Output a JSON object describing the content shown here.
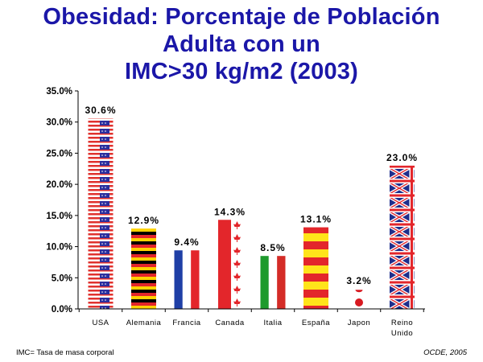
{
  "title_lines": [
    "Obesidad: Porcentaje de Población",
    "Adulta con un",
    "IMC>30 kg/m2 (2003)"
  ],
  "footnote": "IMC= Tasa de masa corporal",
  "source": "OCDE, 2005",
  "colors": {
    "title": "#1b17a8",
    "usa_red": "#e0322e",
    "usa_blue": "#2b2f9e",
    "germany_black": "#000000",
    "germany_red": "#e3262b",
    "germany_gold": "#ffd200",
    "france_blue": "#1f3fa6",
    "france_red": "#e3262b",
    "canada_red": "#e3262b",
    "italy_green": "#1e9a2d",
    "italy_red": "#d42c27",
    "spain_red": "#e3262b",
    "spain_yellow": "#ffe41a",
    "japan_red": "#d71920",
    "uk_blue": "#1f2e8c",
    "uk_red": "#e3262b"
  },
  "chart_data": {
    "type": "bar",
    "categories": [
      "USA",
      "Alemania",
      "Francia",
      "Canada",
      "Italia",
      "España",
      "Japon",
      "Reino Unido"
    ],
    "category_lines": [
      [
        "USA"
      ],
      [
        "Alemania"
      ],
      [
        "Francia"
      ],
      [
        "Canada"
      ],
      [
        "Italia"
      ],
      [
        "España"
      ],
      [
        "Japon"
      ],
      [
        "Reino",
        "Unido"
      ]
    ],
    "values": [
      30.6,
      12.9,
      9.4,
      14.3,
      8.5,
      13.1,
      3.2,
      23.0
    ],
    "value_labels": [
      "30.6%",
      "12.9%",
      "9.4%",
      "14.3%",
      "8.5%",
      "13.1%",
      "3.2%",
      "23.0%"
    ],
    "bar_styles": [
      "usa",
      "germany",
      "france",
      "canada",
      "italy",
      "spain",
      "japan",
      "uk"
    ],
    "ylim": [
      0,
      35
    ],
    "yticks": [
      0,
      5,
      10,
      15,
      20,
      25,
      30,
      35
    ],
    "ytick_labels": [
      "0.0%",
      "5.0%",
      "10.0%",
      "15.0%",
      "20.0%",
      "25.0%",
      "30.0%",
      "35.0%"
    ],
    "grid": false,
    "legend": "none"
  }
}
